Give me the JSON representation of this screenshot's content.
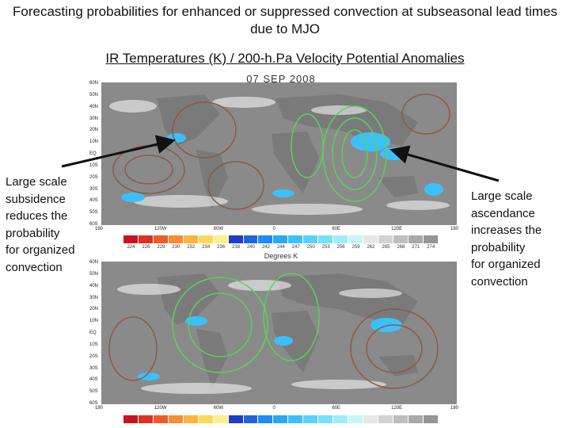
{
  "title": "Forecasting probabilities for enhanced or suppressed convection at subseasonal lead times due to MJO",
  "subtitle": "IR Temperatures (K) / 200-h.Pa Velocity Potential Anomalies",
  "left_annotation": [
    "Large scale",
    "subsidence",
    "reduces the",
    "probability",
    "for organized",
    "convection"
  ],
  "right_annotation": [
    "Large scale",
    "ascendance",
    "increases the",
    "probability",
    "for organized",
    "convection"
  ],
  "top_map": {
    "date": "07 SEP 2008"
  },
  "lat_labels": [
    "60N",
    "50N",
    "40N",
    "30N",
    "20N",
    "10N",
    "EQ",
    "10S",
    "20S",
    "30S",
    "40S",
    "50S",
    "60S"
  ],
  "lon_labels": [
    "180",
    "120W",
    "60W",
    "0",
    "60E",
    "120E",
    "180"
  ],
  "colorbar": {
    "title": "Degrees K",
    "ticks": [
      "224",
      "226",
      "229",
      "230",
      "232",
      "234",
      "236",
      "238",
      "240",
      "242",
      "244",
      "247",
      "250",
      "253",
      "256",
      "259",
      "262",
      "265",
      "268",
      "271",
      "274"
    ],
    "colors": [
      "#c8141e",
      "#e0301e",
      "#f05a28",
      "#f88c32",
      "#fcb43c",
      "#fcd858",
      "#fcf08c",
      "#1e3cc8",
      "#1e64dc",
      "#1e8cf0",
      "#28a8f8",
      "#3cc0fc",
      "#5ad2fc",
      "#78e0fc",
      "#a0ecfc",
      "#c8f4fc",
      "#e6e6e6",
      "#d2d2d2",
      "#bebebe",
      "#aaaaaa",
      "#969696"
    ]
  },
  "legend_colors": {
    "ascent": "#5ad25a",
    "descent": "#8c5a46",
    "land": "#7a7a7a",
    "ocean": "#9a9a9a"
  }
}
